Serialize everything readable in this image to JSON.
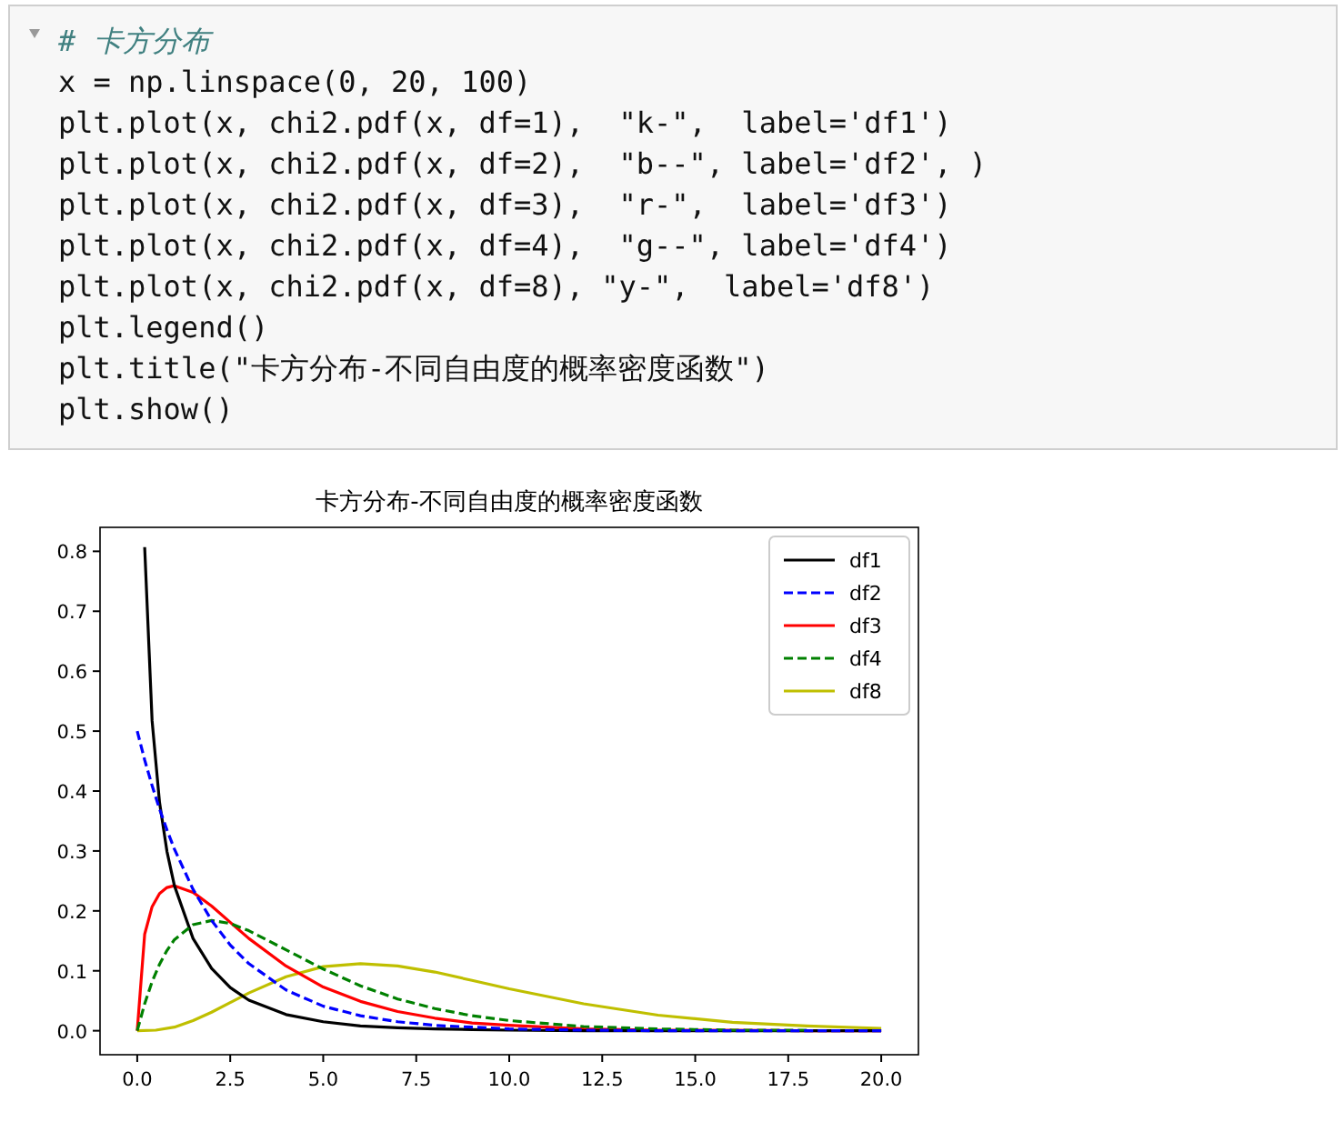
{
  "chart_data": {
    "type": "line",
    "title": "卡方分布-不同自由度的概率密度函数",
    "annotations": [
      "# 卡方分布",
      "x = np.linspace(0, 20, 100)",
      "plt.plot(x, chi2.pdf(x, df=1),  \"k-\",  label='df1')",
      "plt.plot(x, chi2.pdf(x, df=2),  \"b--\", label='df2', )",
      "plt.plot(x, chi2.pdf(x, df=3),  \"r-\",  label='df3')",
      "plt.plot(x, chi2.pdf(x, df=4),  \"g--\", label='df4')",
      "plt.plot(x, chi2.pdf(x, df=8), \"y-\",  label='df8')",
      "plt.legend()",
      "plt.title(\"卡方分布-不同自由度的概率密度函数\")",
      "plt.show()"
    ],
    "xlim": [
      -1,
      21
    ],
    "ylim": [
      -0.04,
      0.84
    ],
    "xticks": [
      {
        "value": 0,
        "label": "0.0"
      },
      2.5,
      {
        "value": 5,
        "label": "5.0"
      },
      7.5,
      {
        "value": 10,
        "label": "10.0"
      },
      12.5,
      {
        "value": 15,
        "label": "15.0"
      },
      17.5,
      {
        "value": 20,
        "label": "20.0"
      }
    ],
    "yticks": [
      {
        "value": 0,
        "label": "0.0"
      },
      0.1,
      0.2,
      0.3,
      0.4,
      0.5,
      0.6,
      0.7,
      0.8
    ],
    "grid": false,
    "legend": "top right",
    "series": [
      {
        "name": "df1",
        "color": "#000000",
        "line_style": "solid",
        "x": [
          0.2,
          0.4,
          0.6,
          0.8,
          1,
          1.5,
          2,
          2.5,
          3,
          4,
          5,
          6,
          7,
          8,
          9,
          10,
          12,
          14,
          16,
          18,
          20
        ],
        "values": [
          0.807,
          0.517,
          0.381,
          0.299,
          0.242,
          0.154,
          0.104,
          0.072,
          0.051,
          0.027,
          0.015,
          0.008,
          0.005,
          0.003,
          0.002,
          0.001,
          0,
          0,
          0,
          0,
          0
        ]
      },
      {
        "name": "df2",
        "color": "#0000ff",
        "line_style": "dashed",
        "x": [
          0,
          0.2,
          0.4,
          0.6,
          0.8,
          1,
          1.5,
          2,
          2.5,
          3,
          4,
          5,
          6,
          7,
          8,
          9,
          10,
          12,
          14,
          16,
          18,
          20
        ],
        "values": [
          0.5,
          0.452,
          0.409,
          0.37,
          0.335,
          0.303,
          0.236,
          0.184,
          0.143,
          0.112,
          0.068,
          0.041,
          0.025,
          0.015,
          0.009,
          0.006,
          0.003,
          0.001,
          0,
          0,
          0,
          0
        ]
      },
      {
        "name": "df3",
        "color": "#ff0000",
        "line_style": "solid",
        "x": [
          0,
          0.2,
          0.4,
          0.6,
          0.8,
          1,
          1.5,
          2,
          2.5,
          3,
          4,
          5,
          6,
          7,
          8,
          9,
          10,
          12,
          14,
          16,
          18,
          20
        ],
        "values": [
          0,
          0.161,
          0.207,
          0.229,
          0.239,
          0.242,
          0.231,
          0.208,
          0.181,
          0.154,
          0.108,
          0.073,
          0.049,
          0.032,
          0.021,
          0.013,
          0.009,
          0.003,
          0.001,
          0.001,
          0,
          0
        ]
      },
      {
        "name": "df4",
        "color": "#008000",
        "line_style": "dashed",
        "x": [
          0,
          0.2,
          0.4,
          0.6,
          0.8,
          1,
          1.5,
          2,
          2.5,
          3,
          4,
          5,
          6,
          7,
          8,
          9,
          10,
          12,
          14,
          16,
          18
        ],
        "values": [
          0,
          0.045,
          0.082,
          0.111,
          0.134,
          0.152,
          0.177,
          0.184,
          0.179,
          0.167,
          0.135,
          0.103,
          0.075,
          0.053,
          0.037,
          0.025,
          0.017,
          0.007,
          0.003,
          0.001,
          0.001
        ]
      },
      {
        "name": "df8",
        "color": "#bfbf00",
        "line_style": "solid",
        "x": [
          0,
          0.5,
          1,
          1.5,
          2,
          2.5,
          3,
          4,
          5,
          6,
          7,
          8,
          9,
          10,
          12,
          14,
          16,
          18,
          20
        ],
        "values": [
          0,
          0.001,
          0.006,
          0.017,
          0.031,
          0.047,
          0.063,
          0.09,
          0.107,
          0.112,
          0.108,
          0.098,
          0.084,
          0.07,
          0.045,
          0.026,
          0.014,
          0.008,
          0.004
        ]
      }
    ]
  }
}
